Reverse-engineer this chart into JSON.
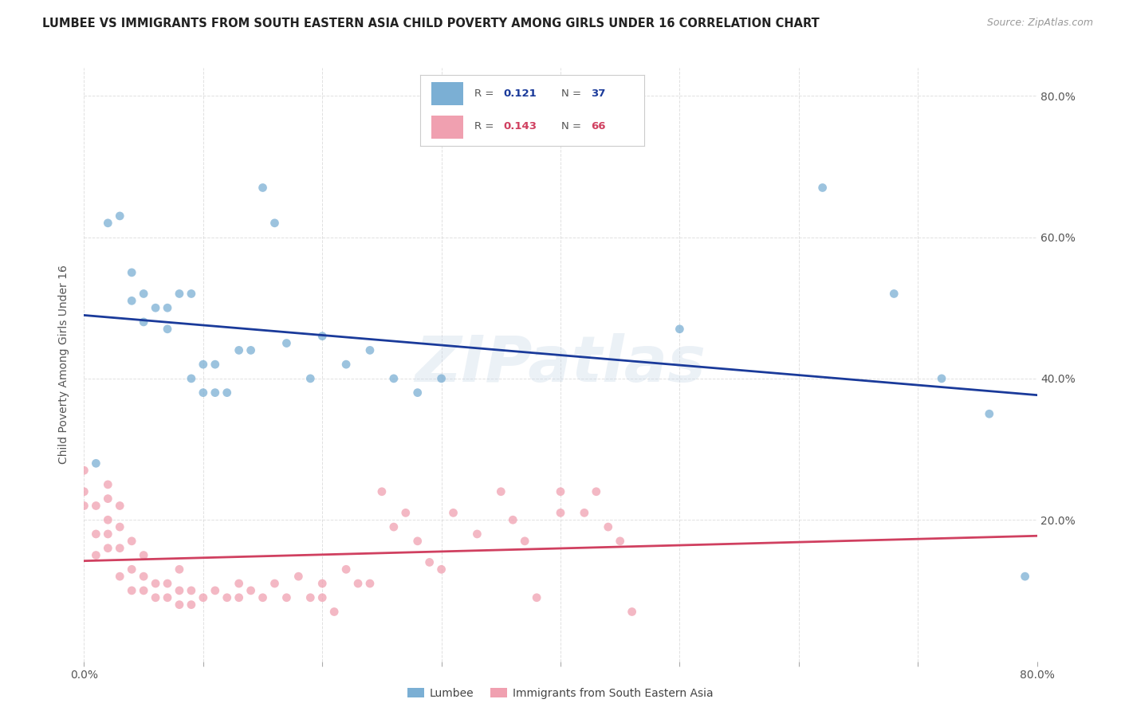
{
  "title": "LUMBEE VS IMMIGRANTS FROM SOUTH EASTERN ASIA CHILD POVERTY AMONG GIRLS UNDER 16 CORRELATION CHART",
  "source": "Source: ZipAtlas.com",
  "ylabel": "Child Poverty Among Girls Under 16",
  "xlim": [
    0.0,
    0.8
  ],
  "ylim": [
    0.0,
    0.84
  ],
  "lumbee_color": "#7bafd4",
  "immigrants_color": "#f0a0b0",
  "lumbee_line_color": "#1a3a9a",
  "immigrants_line_color": "#d04060",
  "watermark": "ZIPatlas",
  "lumbee_scatter_x": [
    0.01,
    0.02,
    0.03,
    0.04,
    0.04,
    0.05,
    0.05,
    0.06,
    0.07,
    0.07,
    0.08,
    0.09,
    0.09,
    0.1,
    0.1,
    0.11,
    0.11,
    0.12,
    0.13,
    0.14,
    0.15,
    0.16,
    0.17,
    0.19,
    0.2,
    0.22,
    0.24,
    0.26,
    0.28,
    0.3,
    0.5,
    0.62,
    0.68,
    0.72,
    0.76,
    0.79
  ],
  "lumbee_scatter_y": [
    0.28,
    0.62,
    0.63,
    0.51,
    0.55,
    0.48,
    0.52,
    0.5,
    0.5,
    0.47,
    0.52,
    0.4,
    0.52,
    0.38,
    0.42,
    0.42,
    0.38,
    0.38,
    0.44,
    0.44,
    0.67,
    0.62,
    0.45,
    0.4,
    0.46,
    0.42,
    0.44,
    0.4,
    0.38,
    0.4,
    0.47,
    0.67,
    0.52,
    0.4,
    0.35,
    0.12
  ],
  "immigrants_scatter_x": [
    0.0,
    0.0,
    0.0,
    0.01,
    0.01,
    0.01,
    0.02,
    0.02,
    0.02,
    0.02,
    0.02,
    0.03,
    0.03,
    0.03,
    0.03,
    0.04,
    0.04,
    0.04,
    0.05,
    0.05,
    0.05,
    0.06,
    0.06,
    0.07,
    0.07,
    0.08,
    0.08,
    0.08,
    0.09,
    0.09,
    0.1,
    0.11,
    0.12,
    0.13,
    0.13,
    0.14,
    0.15,
    0.16,
    0.17,
    0.18,
    0.19,
    0.2,
    0.2,
    0.21,
    0.22,
    0.23,
    0.24,
    0.25,
    0.26,
    0.27,
    0.28,
    0.29,
    0.3,
    0.31,
    0.33,
    0.35,
    0.36,
    0.37,
    0.38,
    0.4,
    0.4,
    0.42,
    0.43,
    0.44,
    0.45,
    0.46
  ],
  "immigrants_scatter_y": [
    0.22,
    0.24,
    0.27,
    0.15,
    0.18,
    0.22,
    0.16,
    0.18,
    0.2,
    0.23,
    0.25,
    0.12,
    0.16,
    0.19,
    0.22,
    0.1,
    0.13,
    0.17,
    0.1,
    0.12,
    0.15,
    0.09,
    0.11,
    0.09,
    0.11,
    0.08,
    0.1,
    0.13,
    0.08,
    0.1,
    0.09,
    0.1,
    0.09,
    0.09,
    0.11,
    0.1,
    0.09,
    0.11,
    0.09,
    0.12,
    0.09,
    0.09,
    0.11,
    0.07,
    0.13,
    0.11,
    0.11,
    0.24,
    0.19,
    0.21,
    0.17,
    0.14,
    0.13,
    0.21,
    0.18,
    0.24,
    0.2,
    0.17,
    0.09,
    0.21,
    0.24,
    0.21,
    0.24,
    0.19,
    0.17,
    0.07
  ],
  "background_color": "#ffffff",
  "grid_color": "#cccccc"
}
